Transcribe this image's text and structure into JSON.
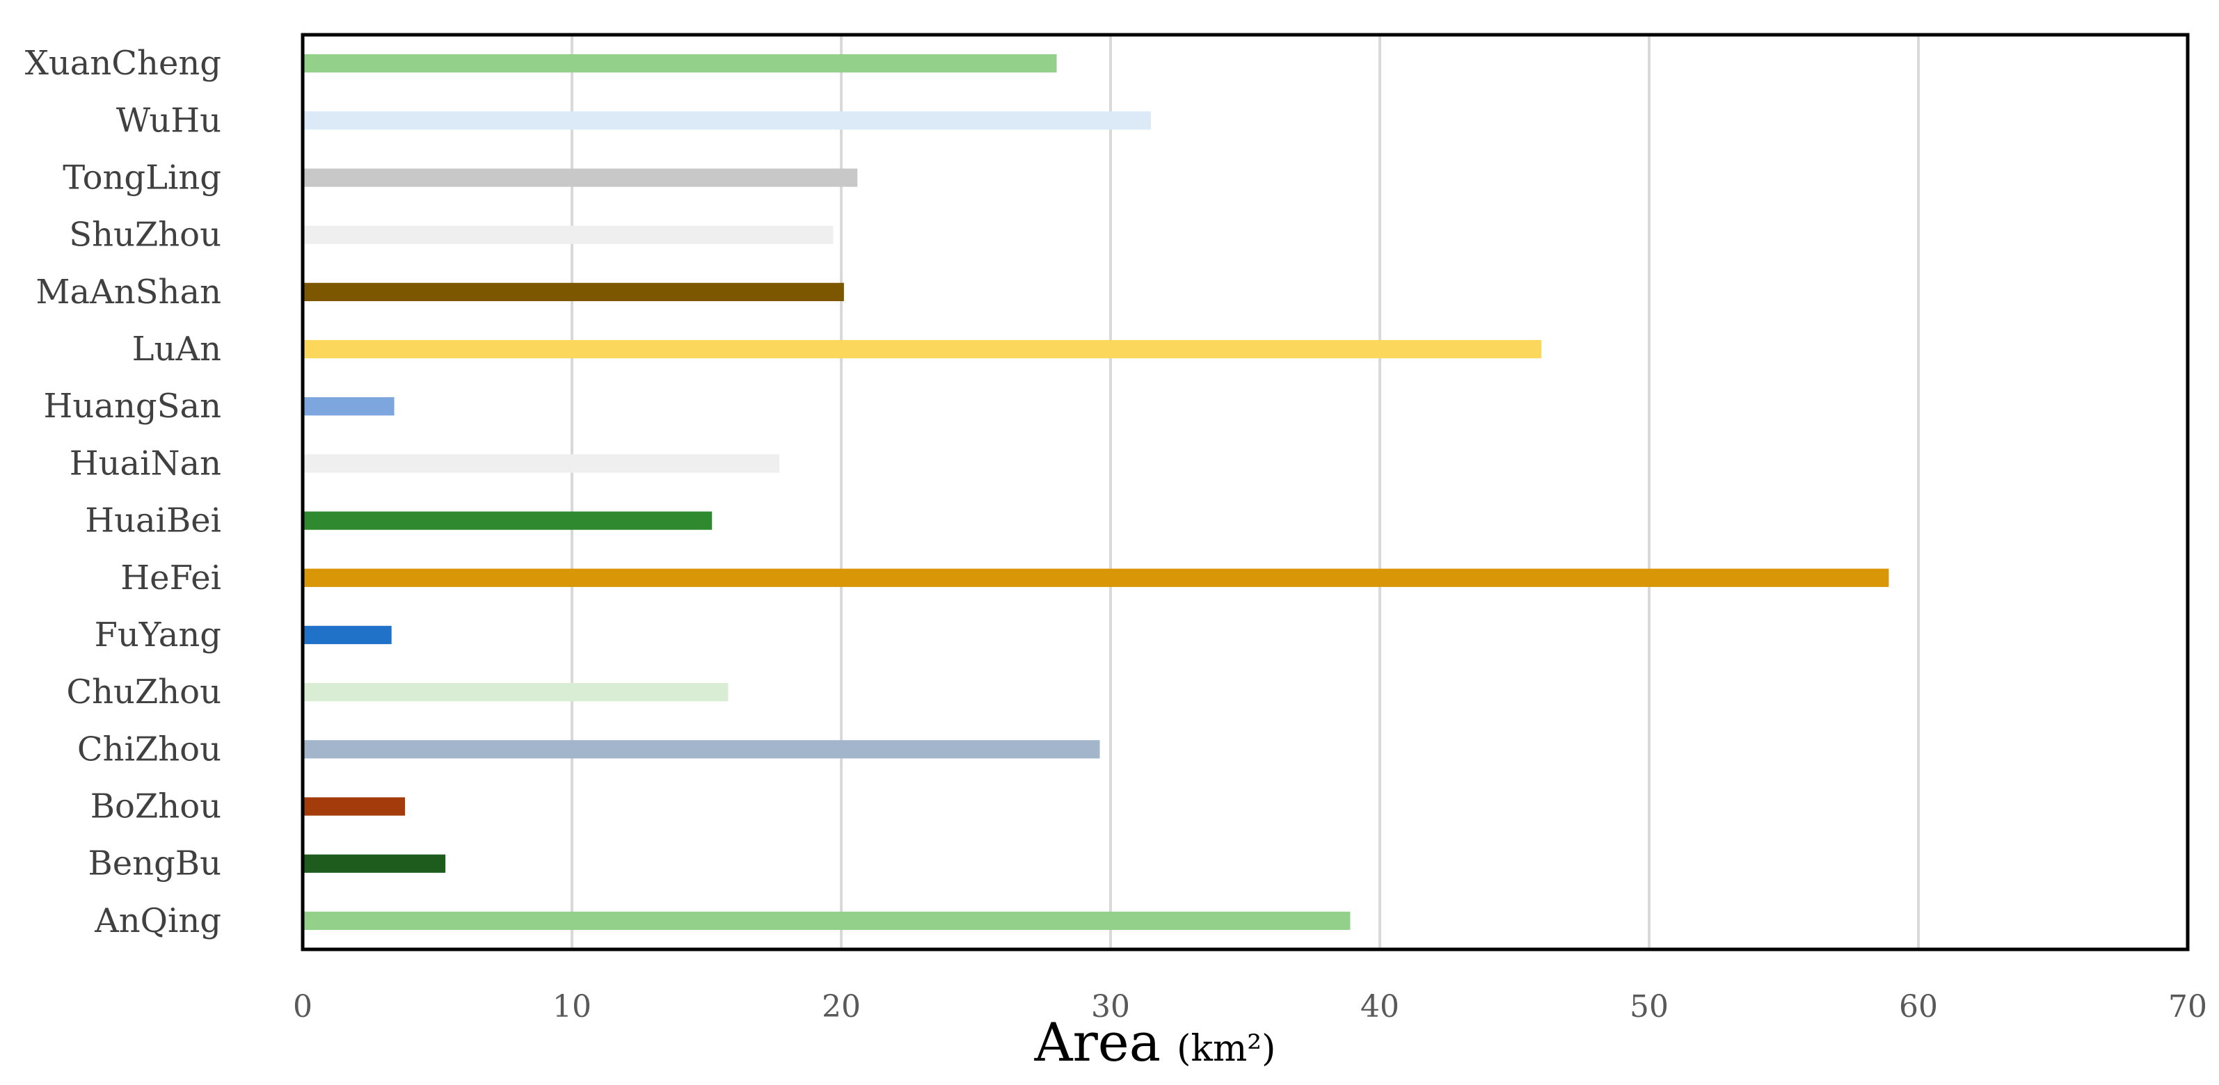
{
  "chart_data": {
    "type": "bar",
    "orientation": "horizontal",
    "categories": [
      "AnQing",
      "BengBu",
      "BoZhou",
      "ChiZhou",
      "ChuZhou",
      "FuYang",
      "HeFei",
      "HuaiBei",
      "HuaiNan",
      "HuangSan",
      "LuAn",
      "MaAnShan",
      "ShuZhou",
      "TongLing",
      "WuHu",
      "XuanCheng"
    ],
    "values": [
      38.9,
      5.3,
      3.8,
      29.6,
      15.8,
      3.3,
      58.9,
      15.2,
      17.7,
      3.4,
      46.0,
      20.1,
      19.7,
      20.6,
      31.5,
      28.0
    ],
    "colors": [
      "#93D08A",
      "#1E5C1E",
      "#A33C0A",
      "#A3B5CB",
      "#D8EDD3",
      "#1F72C8",
      "#D99708",
      "#2F8A2F",
      "#EFEFEF",
      "#7DA6DE",
      "#FBD85C",
      "#7D5600",
      "#EFEFEF",
      "#C8C8C8",
      "#DCEAF7",
      "#93D08A"
    ],
    "xlabel": "Area",
    "xlabel_unit": "(km²)",
    "ylabel": "",
    "title": "",
    "xlim": [
      0,
      70
    ],
    "xticks": [
      0,
      10,
      20,
      30,
      40,
      50,
      60,
      70
    ],
    "grid": "vertical",
    "legend": "none"
  }
}
